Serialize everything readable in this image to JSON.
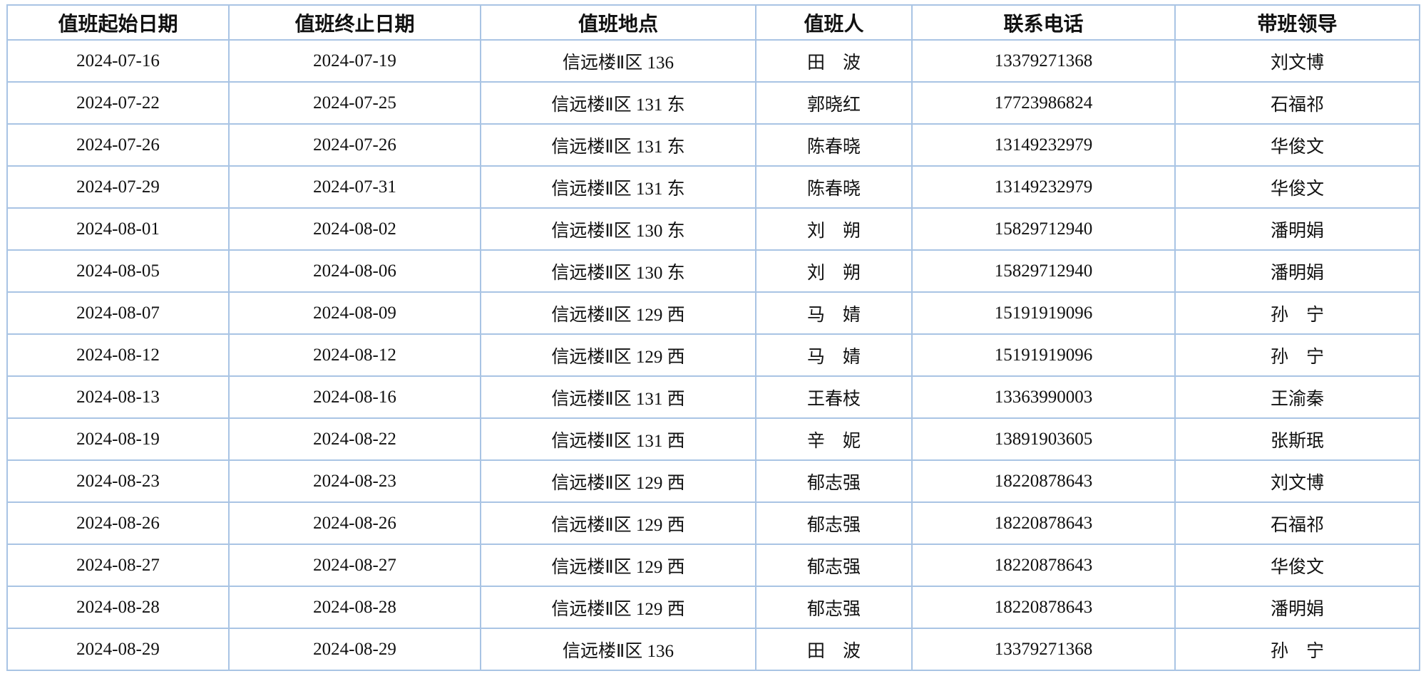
{
  "table": {
    "headers": [
      "值班起始日期",
      "值班终止日期",
      "值班地点",
      "值班人",
      "联系电话",
      "带班领导"
    ],
    "rows": [
      [
        "2024-07-16",
        "2024-07-19",
        "信远楼Ⅱ区 136",
        "田　波",
        "13379271368",
        "刘文博"
      ],
      [
        "2024-07-22",
        "2024-07-25",
        "信远楼Ⅱ区 131 东",
        "郭晓红",
        "17723986824",
        "石福祁"
      ],
      [
        "2024-07-26",
        "2024-07-26",
        "信远楼Ⅱ区 131 东",
        "陈春晓",
        "13149232979",
        "华俊文"
      ],
      [
        "2024-07-29",
        "2024-07-31",
        "信远楼Ⅱ区 131 东",
        "陈春晓",
        "13149232979",
        "华俊文"
      ],
      [
        "2024-08-01",
        "2024-08-02",
        "信远楼Ⅱ区 130 东",
        "刘　朔",
        "15829712940",
        "潘明娟"
      ],
      [
        "2024-08-05",
        "2024-08-06",
        "信远楼Ⅱ区 130 东",
        "刘　朔",
        "15829712940",
        "潘明娟"
      ],
      [
        "2024-08-07",
        "2024-08-09",
        "信远楼Ⅱ区 129 西",
        "马　婧",
        "15191919096",
        "孙　宁"
      ],
      [
        "2024-08-12",
        "2024-08-12",
        "信远楼Ⅱ区 129 西",
        "马　婧",
        "15191919096",
        "孙　宁"
      ],
      [
        "2024-08-13",
        "2024-08-16",
        "信远楼Ⅱ区 131 西",
        "王春枝",
        "13363990003",
        "王渝秦"
      ],
      [
        "2024-08-19",
        "2024-08-22",
        "信远楼Ⅱ区 131 西",
        "辛　妮",
        "13891903605",
        "张斯珉"
      ],
      [
        "2024-08-23",
        "2024-08-23",
        "信远楼Ⅱ区 129 西",
        "郁志强",
        "18220878643",
        "刘文博"
      ],
      [
        "2024-08-26",
        "2024-08-26",
        "信远楼Ⅱ区 129 西",
        "郁志强",
        "18220878643",
        "石福祁"
      ],
      [
        "2024-08-27",
        "2024-08-27",
        "信远楼Ⅱ区 129 西",
        "郁志强",
        "18220878643",
        "华俊文"
      ],
      [
        "2024-08-28",
        "2024-08-28",
        "信远楼Ⅱ区 129 西",
        "郁志强",
        "18220878643",
        "潘明娟"
      ],
      [
        "2024-08-29",
        "2024-08-29",
        "信远楼Ⅱ区 136",
        "田　波",
        "13379271368",
        "孙　宁"
      ]
    ]
  },
  "colors": {
    "border": "#a9c4e4"
  }
}
